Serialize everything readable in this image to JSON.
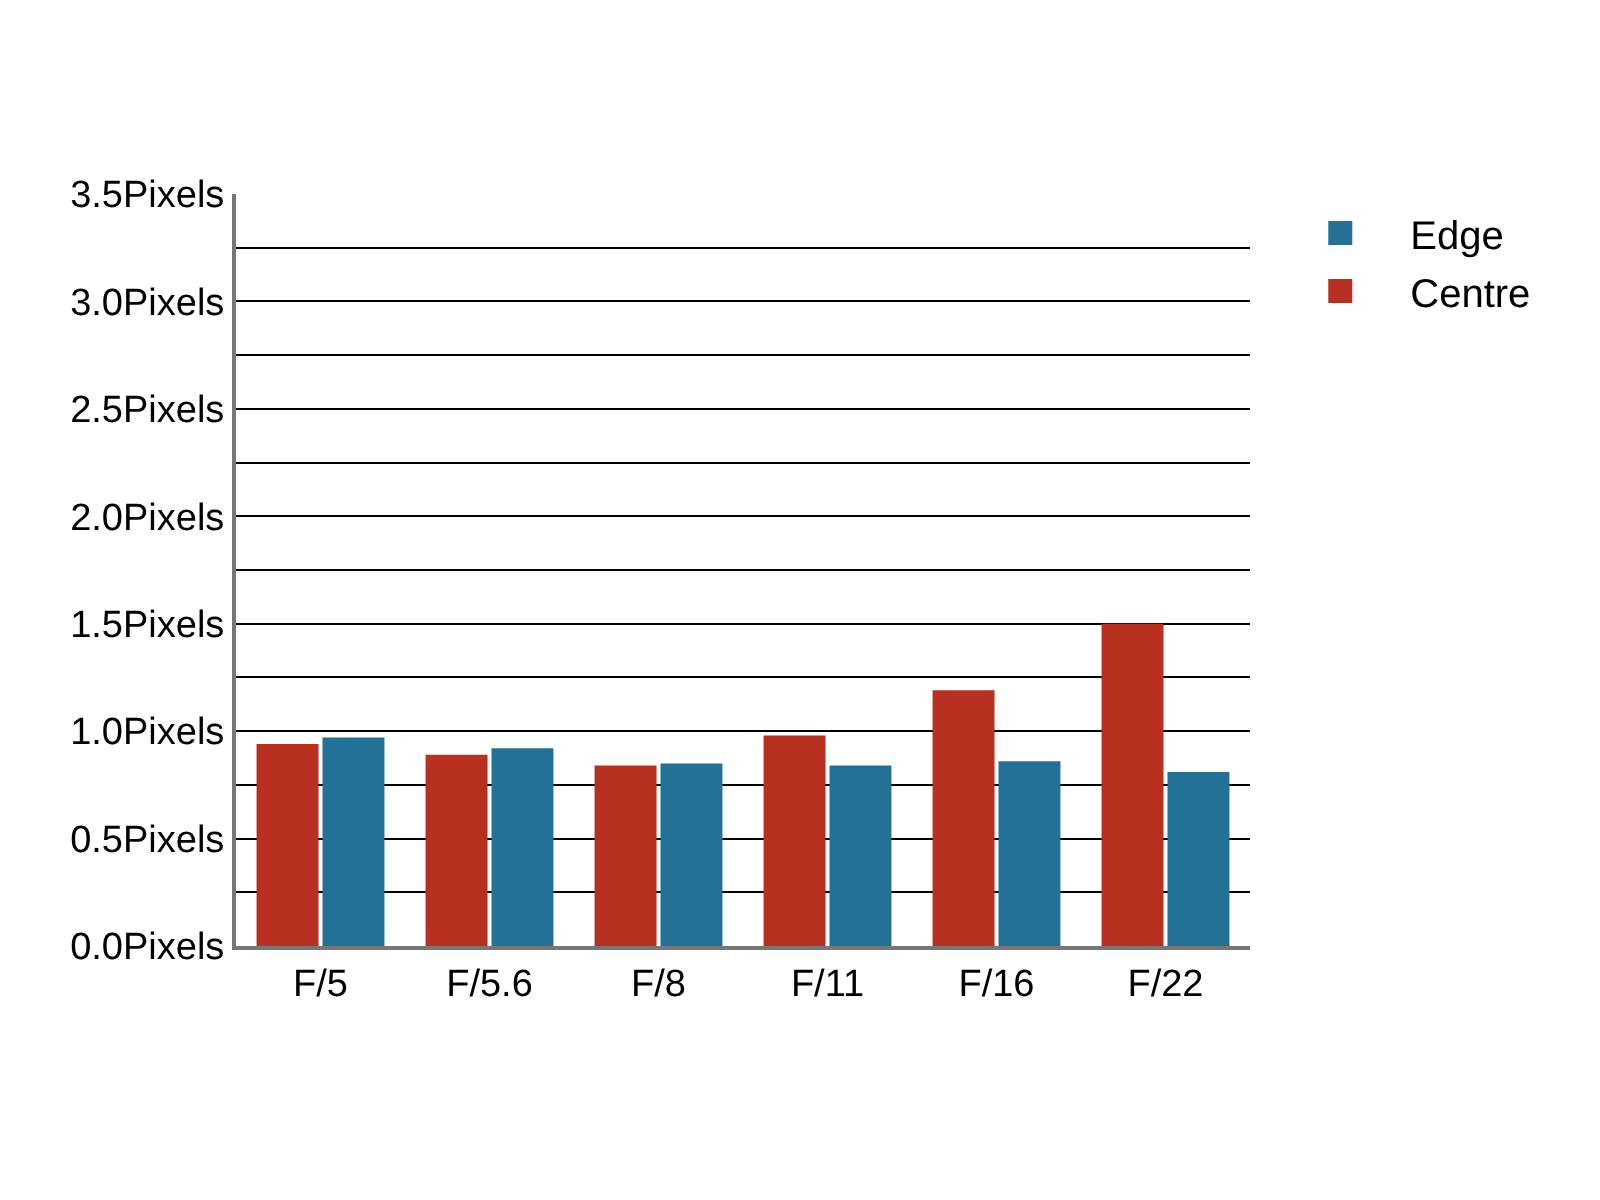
{
  "chart_data": {
    "type": "bar",
    "categories": [
      "F/5",
      "F/5.6",
      "F/8",
      "F/11",
      "F/16",
      "F/22"
    ],
    "series": [
      {
        "name": "Centre",
        "color": "#b8301f",
        "values": [
          0.94,
          0.89,
          0.84,
          0.98,
          1.19,
          1.5
        ]
      },
      {
        "name": "Edge",
        "color": "#237196",
        "values": [
          0.97,
          0.92,
          0.85,
          0.84,
          0.86,
          0.81
        ]
      }
    ],
    "ylim": [
      0,
      3.5
    ],
    "yticks": [
      {
        "value": 0,
        "label": "0.0Pixels"
      },
      {
        "value": 0.25,
        "label": null
      },
      {
        "value": 0.5,
        "label": "0.5Pixels"
      },
      {
        "value": 0.75,
        "label": null
      },
      {
        "value": 1.0,
        "label": "1.0Pixels"
      },
      {
        "value": 1.25,
        "label": null
      },
      {
        "value": 1.5,
        "label": "1.5Pixels"
      },
      {
        "value": 1.75,
        "label": null
      },
      {
        "value": 2.0,
        "label": "2.0Pixels"
      },
      {
        "value": 2.25,
        "label": null
      },
      {
        "value": 2.5,
        "label": "2.5Pixels"
      },
      {
        "value": 2.75,
        "label": null
      },
      {
        "value": 3.0,
        "label": "3.0Pixels"
      },
      {
        "value": 3.25,
        "label": null
      },
      {
        "value": 3.5,
        "label": "3.5Pixels"
      }
    ],
    "grid": "y",
    "legend": "top right"
  }
}
